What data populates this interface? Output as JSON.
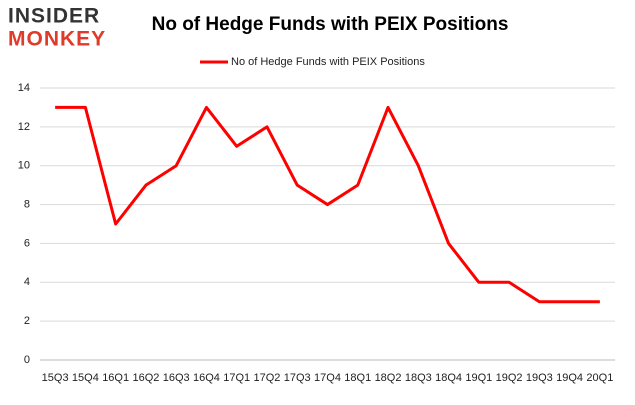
{
  "logo": {
    "top": "INSIDER",
    "bottom": "MONKEY"
  },
  "chart_data": {
    "type": "line",
    "title": "No of Hedge Funds with PEIX Positions",
    "categories": [
      "15Q3",
      "15Q4",
      "16Q1",
      "16Q2",
      "16Q3",
      "16Q4",
      "17Q1",
      "17Q2",
      "17Q3",
      "17Q4",
      "18Q1",
      "18Q2",
      "18Q3",
      "18Q4",
      "19Q1",
      "19Q2",
      "19Q3",
      "19Q4",
      "20Q1"
    ],
    "series": [
      {
        "name": "No of Hedge Funds with PEIX Positions",
        "color": "#ff0000",
        "values": [
          13,
          13,
          7,
          9,
          10,
          13,
          11,
          12,
          9,
          8,
          9,
          13,
          10,
          6,
          4,
          4,
          3,
          3,
          3
        ]
      }
    ],
    "ylim": [
      0,
      14
    ],
    "yticks": [
      0,
      2,
      4,
      6,
      8,
      10,
      12,
      14
    ],
    "grid": true,
    "legend": "top"
  }
}
